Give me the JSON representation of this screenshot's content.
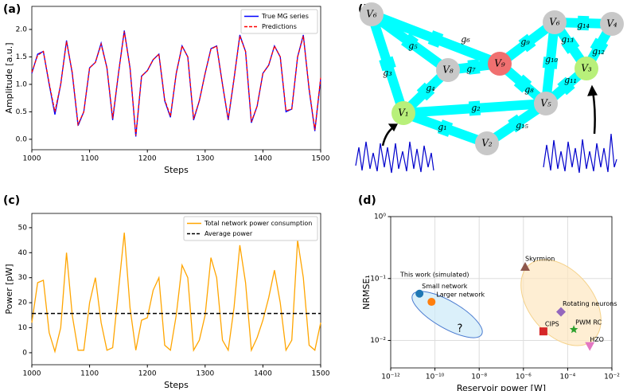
{
  "panel_labels": [
    "(a)",
    "(b)",
    "(c)",
    "(d)"
  ],
  "chart_data": [
    {
      "type": "line",
      "xlabel": "Steps",
      "ylabel": "Amplitude [a.u.]",
      "xlim": [
        1000,
        1500
      ],
      "ylim": [
        -0.19,
        2.42
      ],
      "xticks": [
        1000,
        1100,
        1200,
        1300,
        1400,
        1500
      ],
      "yticks": [
        {
          "value": 0,
          "label": "0.0"
        },
        0.5,
        {
          "value": 1,
          "label": "1.0"
        },
        1.5,
        {
          "value": 2,
          "label": "2.0"
        }
      ],
      "x": [
        1000,
        1010,
        1020,
        1030,
        1040,
        1050,
        1060,
        1070,
        1080,
        1090,
        1100,
        1110,
        1120,
        1130,
        1140,
        1150,
        1160,
        1170,
        1180,
        1190,
        1200,
        1210,
        1220,
        1230,
        1240,
        1250,
        1260,
        1270,
        1280,
        1290,
        1300,
        1310,
        1320,
        1330,
        1340,
        1350,
        1360,
        1370,
        1380,
        1390,
        1400,
        1410,
        1420,
        1430,
        1440,
        1450,
        1460,
        1470,
        1480,
        1490,
        1500
      ],
      "series": [
        {
          "name": "True MG series",
          "color": "#0000ff",
          "dash": false,
          "values": [
            1.2,
            1.55,
            1.6,
            1.0,
            0.45,
            1.0,
            1.8,
            1.2,
            0.25,
            0.5,
            1.3,
            1.4,
            1.75,
            1.3,
            0.35,
            1.2,
            1.98,
            1.3,
            0.05,
            1.15,
            1.25,
            1.45,
            1.55,
            0.7,
            0.4,
            1.2,
            1.7,
            1.5,
            0.35,
            0.7,
            1.2,
            1.65,
            1.7,
            1.0,
            0.35,
            1.1,
            1.9,
            1.6,
            0.3,
            0.6,
            1.2,
            1.35,
            1.7,
            1.5,
            0.5,
            0.55,
            1.5,
            1.9,
            0.9,
            0.15,
            1.1
          ]
        },
        {
          "name": "Predictions",
          "color": "#ff0000",
          "dash": true,
          "values": [
            1.22,
            1.53,
            1.6,
            1.02,
            0.5,
            1.0,
            1.78,
            1.22,
            0.27,
            0.5,
            1.3,
            1.4,
            1.73,
            1.3,
            0.38,
            1.2,
            1.96,
            1.3,
            0.07,
            1.15,
            1.25,
            1.45,
            1.55,
            0.72,
            0.42,
            1.2,
            1.7,
            1.5,
            0.37,
            0.7,
            1.2,
            1.64,
            1.7,
            1.0,
            0.37,
            1.1,
            1.88,
            1.6,
            0.32,
            0.6,
            1.2,
            1.35,
            1.7,
            1.5,
            0.52,
            0.55,
            1.5,
            1.88,
            0.92,
            0.17,
            1.12
          ]
        }
      ]
    },
    {
      "type": "line",
      "xlabel": "Steps",
      "ylabel": "Power [pW]",
      "xlim": [
        1000,
        1500
      ],
      "ylim": [
        -4.8,
        55.7
      ],
      "xticks": [
        1000,
        1100,
        1200,
        1300,
        1400,
        1500
      ],
      "yticks": [
        0,
        10,
        20,
        30,
        40,
        50
      ],
      "x": [
        1000,
        1010,
        1020,
        1030,
        1040,
        1050,
        1060,
        1070,
        1080,
        1090,
        1100,
        1110,
        1120,
        1130,
        1140,
        1150,
        1160,
        1170,
        1180,
        1190,
        1200,
        1210,
        1220,
        1230,
        1240,
        1250,
        1260,
        1270,
        1280,
        1290,
        1300,
        1310,
        1320,
        1330,
        1340,
        1350,
        1360,
        1370,
        1380,
        1390,
        1400,
        1410,
        1420,
        1430,
        1440,
        1450,
        1460,
        1470,
        1480,
        1490,
        1500
      ],
      "series": [
        {
          "name": "Total network power consumption",
          "color": "#ffa500",
          "dash": false,
          "values": [
            12,
            28,
            29,
            8,
            0.5,
            10,
            40,
            15,
            1,
            1,
            20,
            30,
            12,
            1,
            2,
            25,
            48,
            18,
            1,
            13,
            14,
            25,
            30,
            3,
            1,
            15,
            35,
            30,
            1,
            5,
            15,
            38,
            30,
            5,
            1,
            18,
            43,
            28,
            1,
            6,
            13,
            22,
            33,
            20,
            1,
            5,
            45,
            30,
            3,
            1,
            12
          ]
        }
      ],
      "hline": {
        "name": "Average power",
        "color": "#000000",
        "value": 15.7
      }
    },
    {
      "type": "scatter",
      "xlabel": "Reservoir power [W]",
      "ylabel": "NRMSE₁",
      "xlog": true,
      "ylog": true,
      "grid": true,
      "xlim": [
        1e-12,
        0.01
      ],
      "ylim": [
        0.0036,
        1
      ],
      "xticks": [
        {
          "value": 1e-12,
          "label": "10⁻¹²"
        },
        {
          "value": 1e-10,
          "label": "10⁻¹⁰"
        },
        {
          "value": 1e-08,
          "label": "10⁻⁸"
        },
        {
          "value": 1e-06,
          "label": "10⁻⁶"
        },
        {
          "value": 0.0001,
          "label": "10⁻⁴"
        },
        {
          "value": 0.01,
          "label": "10⁻²"
        }
      ],
      "yticks": [
        {
          "value": 0.01,
          "label": "10⁻²"
        },
        {
          "value": 0.1,
          "label": "10⁻¹"
        },
        {
          "value": 1,
          "label": "10⁰"
        }
      ],
      "annotations": [
        "This work (simulated)",
        "?"
      ],
      "points": [
        {
          "name": "Small network",
          "x": 2e-11,
          "y": 0.057,
          "color": "#1f77b4",
          "marker": "circle"
        },
        {
          "name": "Larger network",
          "x": 7e-11,
          "y": 0.042,
          "color": "#ff7f0e",
          "marker": "circle"
        },
        {
          "name": "Skyrmion",
          "x": 1.2e-06,
          "y": 0.155,
          "color": "#8c564b",
          "marker": "triangle"
        },
        {
          "name": "Rotating neurons",
          "x": 5e-05,
          "y": 0.029,
          "color": "#9467bd",
          "marker": "diamond"
        },
        {
          "name": "PWM RC",
          "x": 0.00019,
          "y": 0.015,
          "color": "#2ca02c",
          "marker": "star"
        },
        {
          "name": "CIPS",
          "x": 8e-06,
          "y": 0.014,
          "color": "#d62728",
          "marker": "square"
        },
        {
          "name": "HZO",
          "x": 0.001,
          "y": 0.0081,
          "color": "#e377c2",
          "marker": "triangle-down"
        }
      ]
    }
  ],
  "diagram": {
    "nodes": [
      "V₆",
      "V₈",
      "V₉",
      "V₆",
      "V₄",
      "V₃",
      "V₅",
      "V₁",
      "V₂"
    ],
    "edges": [
      "g₁",
      "g₂",
      "g₃",
      "g₄",
      "g₅",
      "g₆",
      "g₇",
      "g₈",
      "g₉",
      "g₁₀",
      "g₁₁",
      "g₁₂",
      "g₁₃",
      "g₁₄",
      "g₁₅"
    ]
  }
}
